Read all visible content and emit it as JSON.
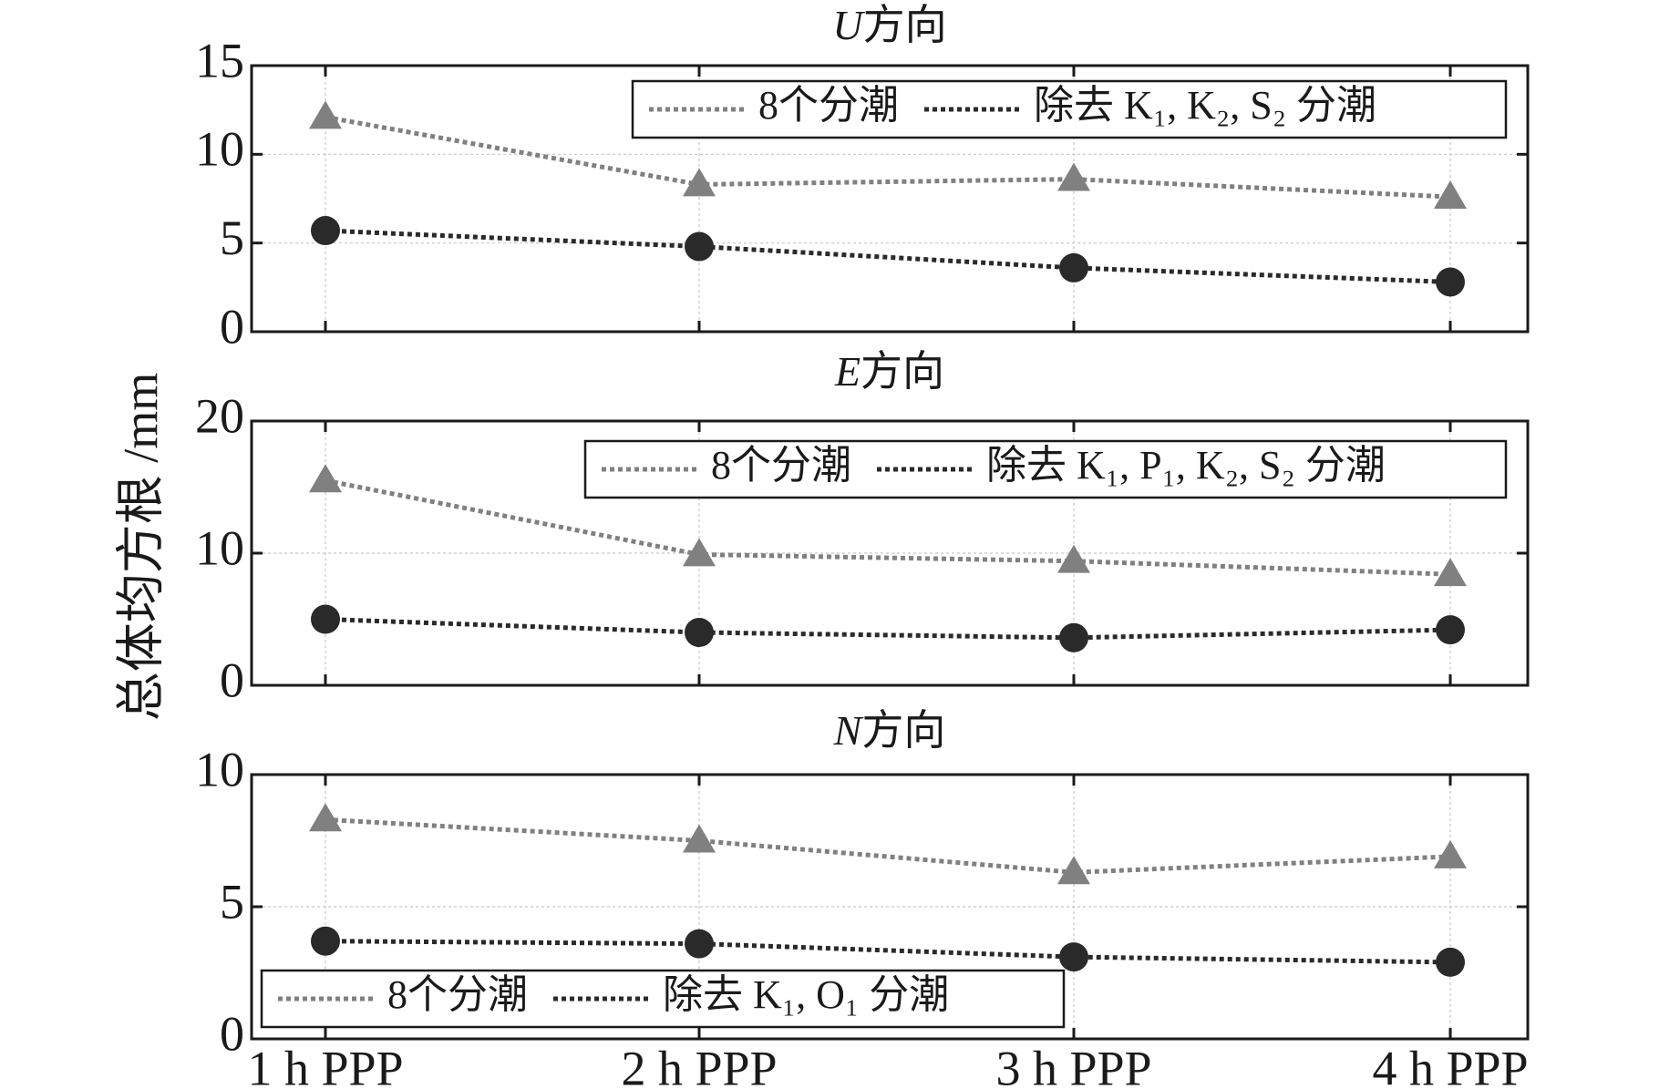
{
  "chart_data": {
    "type": "line",
    "ylabel": "总体均方根 /mm",
    "categories": [
      "1 h PPP",
      "2 h PPP",
      "3 h PPP",
      "4 h PPP"
    ],
    "panels": [
      {
        "id": "U",
        "title_italic": "U",
        "title_suffix": "方向",
        "ylim": [
          0,
          15
        ],
        "yticks": [
          "0",
          "5",
          "10",
          "15"
        ],
        "ytick_values": [
          0,
          5,
          10,
          15
        ],
        "grid": true,
        "legend_position": "top-right",
        "series": [
          {
            "name": "8个分潮",
            "values": [
              12.1,
              8.3,
              8.6,
              7.6
            ],
            "color": "#808080",
            "marker": "triangle"
          },
          {
            "name": "除去 K₁, K₂, S₂ 分潮",
            "values": [
              5.7,
              4.8,
              3.6,
              2.8
            ],
            "color": "#2a2a2a",
            "marker": "circle"
          }
        ]
      },
      {
        "id": "E",
        "title_italic": "E",
        "title_suffix": "方向",
        "ylim": [
          0,
          20
        ],
        "yticks": [
          "0",
          "10",
          "20"
        ],
        "ytick_values": [
          0,
          10,
          20
        ],
        "grid": true,
        "legend_position": "top-right",
        "series": [
          {
            "name": "8个分潮",
            "values": [
              15.5,
              9.9,
              9.4,
              8.4
            ],
            "color": "#808080",
            "marker": "triangle"
          },
          {
            "name": "除去 K₁, P₁, K₂, S₂ 分潮",
            "values": [
              5.0,
              4.0,
              3.6,
              4.2
            ],
            "color": "#2a2a2a",
            "marker": "circle"
          }
        ]
      },
      {
        "id": "N",
        "title_italic": "N",
        "title_suffix": "方向",
        "ylim": [
          0,
          10
        ],
        "yticks": [
          "0",
          "5",
          "10"
        ],
        "ytick_values": [
          0,
          5,
          10
        ],
        "grid": true,
        "legend_position": "bottom-left",
        "series": [
          {
            "name": "8个分潮",
            "values": [
              8.3,
              7.5,
              6.3,
              6.9
            ],
            "color": "#808080",
            "marker": "triangle"
          },
          {
            "name": "除去 K₁, O₁ 分潮",
            "values": [
              3.7,
              3.6,
              3.1,
              2.9
            ],
            "color": "#2a2a2a",
            "marker": "circle"
          }
        ]
      }
    ]
  }
}
